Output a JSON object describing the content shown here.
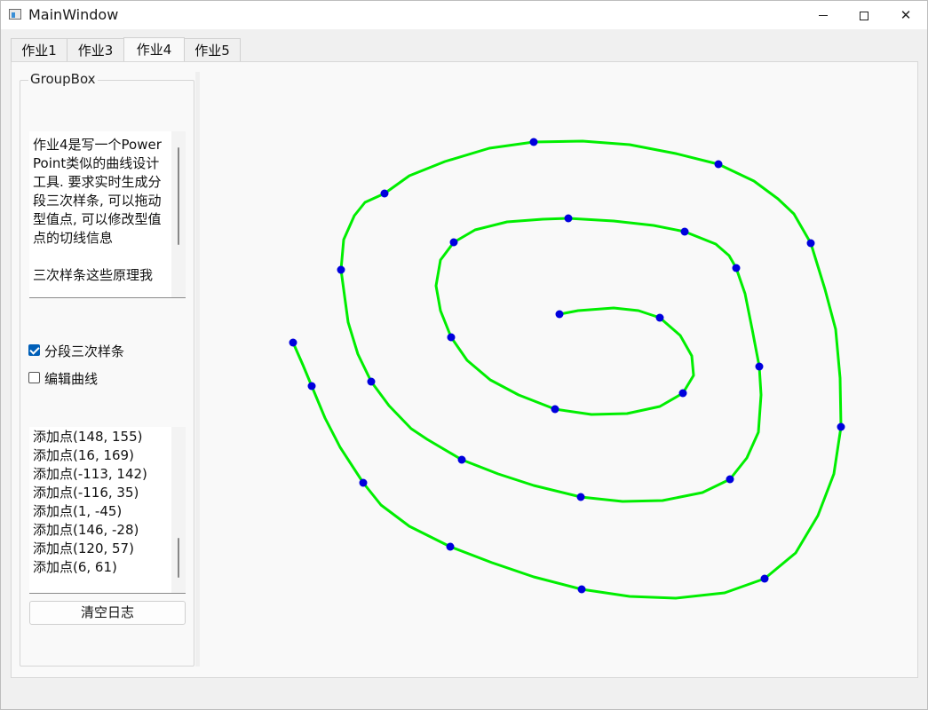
{
  "window": {
    "title": "MainWindow"
  },
  "tabs": [
    {
      "label": "作业1",
      "active": false
    },
    {
      "label": "作业3",
      "active": false
    },
    {
      "label": "作业4",
      "active": true
    },
    {
      "label": "作业5",
      "active": false
    }
  ],
  "group": {
    "title": "GroupBox",
    "description": "作业4是写一个PowerPoint类似的曲线设计工具. 要求实时生成分段三次样条, 可以拖动型值点, 可以修改型值点的切线信息\n\n三次样条这些原理我",
    "checkbox_spline": {
      "label": "分段三次样条",
      "checked": true
    },
    "checkbox_edit": {
      "label": "编辑曲线",
      "checked": false
    },
    "log": [
      "添加点(148, 155)",
      "添加点(16, 169)",
      "添加点(-113, 142)",
      "添加点(-116, 35)",
      "添加点(1, -45)",
      "添加点(146, -28)",
      "添加点(120, 57)",
      "添加点(6, 61)"
    ],
    "clear_label": "清空日志"
  },
  "curve": {
    "line_color": "#00ee00",
    "point_color": "#0000dd",
    "control_points": [
      [
        629,
        353
      ],
      [
        742,
        357
      ],
      [
        768,
        442
      ],
      [
        624,
        460
      ],
      [
        507,
        379
      ],
      [
        510,
        272
      ],
      [
        639,
        245
      ],
      [
        770,
        260
      ],
      [
        828,
        301
      ],
      [
        854,
        412
      ],
      [
        821,
        539
      ],
      [
        653,
        559
      ],
      [
        519,
        517
      ],
      [
        417,
        429
      ],
      [
        383,
        303
      ],
      [
        432,
        217
      ],
      [
        600,
        159
      ],
      [
        808,
        184
      ],
      [
        912,
        273
      ],
      [
        946,
        480
      ],
      [
        860,
        651
      ],
      [
        654,
        663
      ],
      [
        506,
        615
      ],
      [
        408,
        543
      ],
      [
        350,
        434
      ],
      [
        329,
        385
      ]
    ],
    "curve_points": [
      [
        629,
        353
      ],
      [
        650,
        349
      ],
      [
        690,
        346
      ],
      [
        718,
        349
      ],
      [
        742,
        357
      ],
      [
        765,
        377
      ],
      [
        778,
        400
      ],
      [
        780,
        422
      ],
      [
        768,
        442
      ],
      [
        742,
        457
      ],
      [
        705,
        465
      ],
      [
        665,
        466
      ],
      [
        624,
        460
      ],
      [
        583,
        444
      ],
      [
        551,
        427
      ],
      [
        525,
        405
      ],
      [
        507,
        379
      ],
      [
        495,
        349
      ],
      [
        490,
        321
      ],
      [
        495,
        292
      ],
      [
        510,
        272
      ],
      [
        534,
        258
      ],
      [
        570,
        249
      ],
      [
        610,
        246
      ],
      [
        639,
        245
      ],
      [
        690,
        248
      ],
      [
        735,
        253
      ],
      [
        770,
        260
      ],
      [
        805,
        274
      ],
      [
        820,
        287
      ],
      [
        828,
        301
      ],
      [
        838,
        330
      ],
      [
        846,
        370
      ],
      [
        854,
        412
      ],
      [
        856,
        444
      ],
      [
        853,
        486
      ],
      [
        840,
        515
      ],
      [
        821,
        539
      ],
      [
        790,
        554
      ],
      [
        745,
        563
      ],
      [
        700,
        564
      ],
      [
        653,
        559
      ],
      [
        600,
        546
      ],
      [
        560,
        533
      ],
      [
        519,
        517
      ],
      [
        480,
        494
      ],
      [
        462,
        482
      ],
      [
        437,
        456
      ],
      [
        417,
        429
      ],
      [
        402,
        398
      ],
      [
        391,
        362
      ],
      [
        383,
        303
      ],
      [
        386,
        269
      ],
      [
        398,
        242
      ],
      [
        410,
        227
      ],
      [
        432,
        217
      ],
      [
        460,
        197
      ],
      [
        500,
        181
      ],
      [
        550,
        166
      ],
      [
        600,
        159
      ],
      [
        655,
        158
      ],
      [
        708,
        162
      ],
      [
        760,
        172
      ],
      [
        808,
        184
      ],
      [
        848,
        203
      ],
      [
        875,
        223
      ],
      [
        893,
        240
      ],
      [
        912,
        273
      ],
      [
        928,
        325
      ],
      [
        940,
        370
      ],
      [
        945,
        425
      ],
      [
        946,
        480
      ],
      [
        938,
        533
      ],
      [
        920,
        580
      ],
      [
        895,
        622
      ],
      [
        860,
        651
      ],
      [
        815,
        667
      ],
      [
        760,
        673
      ],
      [
        708,
        671
      ],
      [
        654,
        663
      ],
      [
        600,
        649
      ],
      [
        553,
        633
      ],
      [
        506,
        615
      ],
      [
        460,
        592
      ],
      [
        428,
        568
      ],
      [
        408,
        543
      ],
      [
        382,
        503
      ],
      [
        365,
        470
      ],
      [
        350,
        434
      ],
      [
        340,
        410
      ],
      [
        329,
        385
      ]
    ]
  }
}
